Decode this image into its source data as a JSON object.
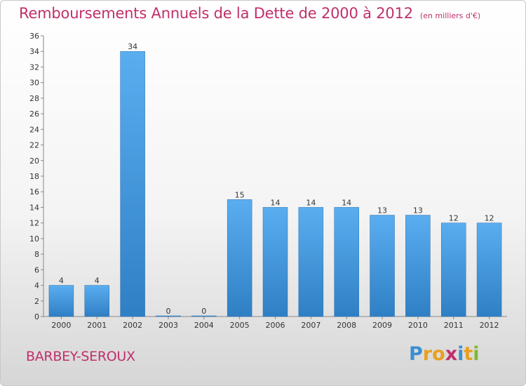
{
  "chart_data": {
    "type": "bar",
    "title": "Remboursements Annuels de la Dette de 2000 à 2012",
    "subtitle": "(en milliers d'€)",
    "xlabel": "",
    "ylabel": "",
    "categories": [
      "2000",
      "2001",
      "2002",
      "2003",
      "2004",
      "2005",
      "2006",
      "2007",
      "2008",
      "2009",
      "2010",
      "2011",
      "2012"
    ],
    "values": [
      4,
      4,
      34,
      0,
      0,
      15,
      14,
      14,
      14,
      13,
      13,
      12,
      12
    ],
    "ylim": [
      0,
      36
    ],
    "yticks": [
      0,
      2,
      4,
      6,
      8,
      10,
      12,
      14,
      16,
      18,
      20,
      22,
      24,
      26,
      28,
      30,
      32,
      34,
      36
    ],
    "grid": false,
    "bar_color": "#4a9fe0"
  },
  "location": "BARBEY-SEROUX",
  "brand": {
    "letters": [
      "P",
      "r",
      "o",
      "x",
      "i",
      "t",
      "i"
    ],
    "colors": [
      "#3a8fd0",
      "#e8a020",
      "#e8a020",
      "#c0306a",
      "#3a8fd0",
      "#e8a020",
      "#80b830"
    ]
  }
}
